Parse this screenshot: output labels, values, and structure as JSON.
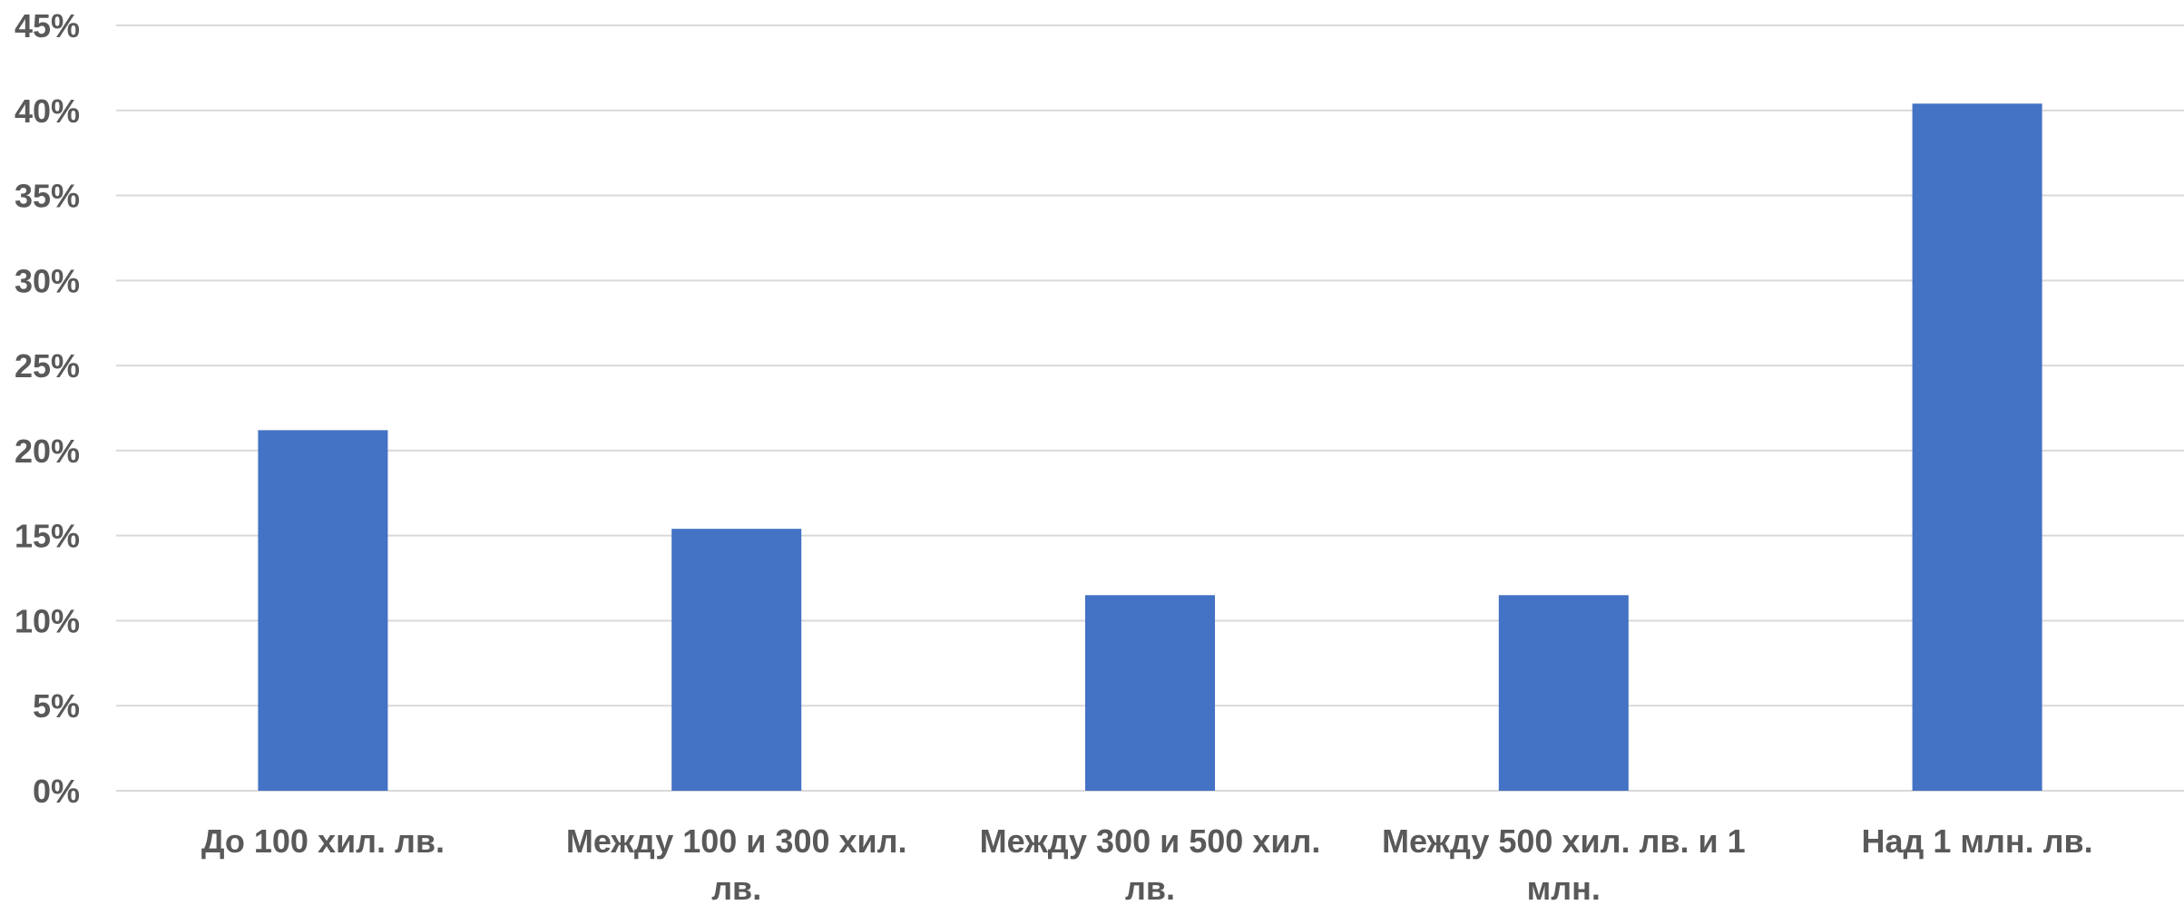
{
  "chart_data": {
    "type": "bar",
    "title": "",
    "xlabel": "",
    "ylabel": "",
    "categories": [
      "До 100 хил. лв.",
      "Между 100 и 300 хил. лв.",
      "Между 300 и 500 хил. лв.",
      "Между 500 хил. лв. и 1 млн.",
      "Над 1 млн. лв."
    ],
    "category_label_lines": [
      [
        "До 100 хил. лв."
      ],
      [
        "Между 100 и 300 хил.",
        "лв."
      ],
      [
        "Между 300 и 500 хил.",
        "лв."
      ],
      [
        "Между 500 хил. лв. и 1",
        "млн."
      ],
      [
        "Над 1 млн. лв."
      ]
    ],
    "series": [
      {
        "values": [
          0.212,
          0.154,
          0.115,
          0.115,
          0.404
        ]
      }
    ],
    "ylim": [
      0,
      0.45
    ],
    "ytick_step": 0.05,
    "ytick_labels": [
      "0%",
      "5%",
      "10%",
      "15%",
      "20%",
      "25%",
      "30%",
      "35%",
      "40%",
      "45%"
    ],
    "grid": true,
    "legend": "none",
    "colors": {
      "bar": "#4472C4",
      "grid": "#D9D9D9",
      "text": "#595959"
    }
  }
}
